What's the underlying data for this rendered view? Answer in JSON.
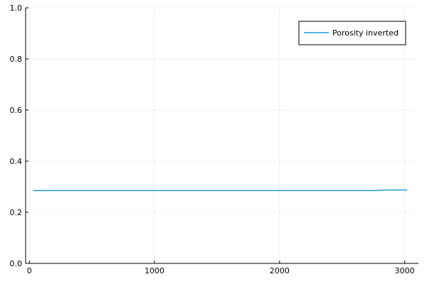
{
  "chart_data": {
    "type": "line",
    "title": "",
    "xlabel": "",
    "ylabel": "",
    "xlim": [
      -30,
      3110
    ],
    "ylim": [
      0,
      1
    ],
    "xticks": [
      0,
      1000,
      2000,
      3000
    ],
    "yticks": [
      0.0,
      0.2,
      0.4,
      0.6,
      0.8,
      1.0
    ],
    "xtick_labels": [
      "0",
      "1000",
      "2000",
      "3000"
    ],
    "ytick_labels": [
      "0.0",
      "0.2",
      "0.4",
      "0.6",
      "0.8",
      "1.0"
    ],
    "grid": true,
    "legend_position": "top-right",
    "series": [
      {
        "name": "Porosity inverted",
        "color": "#1f9bd8",
        "x": [
          30,
          500,
          1000,
          1500,
          2000,
          2500,
          2780,
          2850,
          3020
        ],
        "y": [
          0.285,
          0.285,
          0.285,
          0.285,
          0.285,
          0.285,
          0.285,
          0.287,
          0.287
        ]
      }
    ]
  }
}
